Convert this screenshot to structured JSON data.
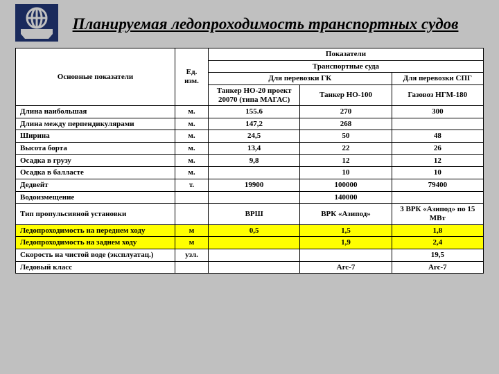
{
  "title": "Планируемая ледопроходимость транспортных судов",
  "headers": {
    "main_col": "Основные показатели",
    "unit_col": "Ед. изм.",
    "indicators": "Показатели",
    "ships": "Транспортные суда",
    "cargo_gk": "Для перевозки ГК",
    "cargo_spg": "Для перевозки СПГ",
    "ship1": "Танкер НО-20 проект 20070 (типа МАГАС)",
    "ship2": "Танкер НО-100",
    "ship3": "Газовоз НГМ-180"
  },
  "rows": [
    {
      "label": "Длина наибольшая",
      "unit": "м.",
      "v": [
        "155.6",
        "270",
        "300"
      ],
      "hl": false
    },
    {
      "label": "Длина между перпендикулярами",
      "unit": "м.",
      "v": [
        "147,2",
        "268",
        ""
      ],
      "hl": false
    },
    {
      "label": "Ширина",
      "unit": "м.",
      "v": [
        "24,5",
        "50",
        "48"
      ],
      "hl": false
    },
    {
      "label": "Высота борта",
      "unit": "м.",
      "v": [
        "13,4",
        "22",
        "26"
      ],
      "hl": false
    },
    {
      "label": "Осадка в грузу",
      "unit": "м.",
      "v": [
        "9,8",
        "12",
        "12"
      ],
      "hl": false
    },
    {
      "label": "Осадка в балласте",
      "unit": "м.",
      "v": [
        "",
        "10",
        "10"
      ],
      "hl": false
    },
    {
      "label": "Дедвейт",
      "unit": "т.",
      "v": [
        "19900",
        "100000",
        "79400"
      ],
      "hl": false
    },
    {
      "label": "Водоизмещение",
      "unit": "",
      "v": [
        "",
        "140000",
        ""
      ],
      "hl": false
    },
    {
      "label": "Тип пропульсивной установки",
      "unit": "",
      "v": [
        "ВРШ",
        "ВРК «Азипод»",
        "3 ВРК «Азипод» по 15 МВт"
      ],
      "hl": false
    },
    {
      "label": "Ледопроходимость на переднем ходу",
      "unit": "м",
      "v": [
        "0,5",
        "1,5",
        "1,8"
      ],
      "hl": true
    },
    {
      "label": "Ледопроходимость на заднем ходу",
      "unit": "м",
      "v": [
        "",
        "1,9",
        "2,4"
      ],
      "hl": true
    },
    {
      "label": "Скорость на чистой воде (эксплуатац.)",
      "unit": "узл.",
      "v": [
        "",
        "",
        "19,5"
      ],
      "hl": false
    },
    {
      "label": "Ледовый класс",
      "unit": "",
      "v": [
        "",
        "Arc-7",
        "Arc-7"
      ],
      "hl": false
    }
  ],
  "colors": {
    "bg": "#c0c0c0",
    "highlight": "#ffff00",
    "logo_bg": "#1a2a5c"
  }
}
